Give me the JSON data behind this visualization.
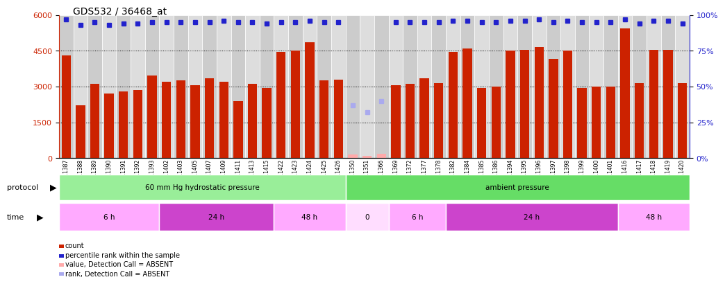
{
  "title": "GDS532 / 36468_at",
  "samples": [
    "GSM11387",
    "GSM11388",
    "GSM11389",
    "GSM11390",
    "GSM11391",
    "GSM11392",
    "GSM11393",
    "GSM11402",
    "GSM11403",
    "GSM11405",
    "GSM11407",
    "GSM11409",
    "GSM11411",
    "GSM11413",
    "GSM11415",
    "GSM11422",
    "GSM11423",
    "GSM11424",
    "GSM11425",
    "GSM11426",
    "GSM11350",
    "GSM11351",
    "GSM11366",
    "GSM11369",
    "GSM11372",
    "GSM11377",
    "GSM11378",
    "GSM11382",
    "GSM11384",
    "GSM11385",
    "GSM11386",
    "GSM11394",
    "GSM11395",
    "GSM11396",
    "GSM11397",
    "GSM11398",
    "GSM11399",
    "GSM11400",
    "GSM11401",
    "GSM11416",
    "GSM11417",
    "GSM11418",
    "GSM11419",
    "GSM11420"
  ],
  "counts": [
    4300,
    2200,
    3100,
    2700,
    2800,
    2850,
    3450,
    3200,
    3250,
    3050,
    3350,
    3200,
    2400,
    3100,
    2950,
    4450,
    4500,
    4850,
    3250,
    3300,
    null,
    null,
    null,
    3050,
    3100,
    3350,
    3150,
    4450,
    4600,
    2950,
    3000,
    4500,
    4550,
    4650,
    4150,
    4500,
    2950,
    3000,
    3000,
    5450,
    3150,
    4550,
    4550,
    3150
  ],
  "absent_value_bars": [
    null,
    null,
    null,
    null,
    null,
    null,
    null,
    null,
    null,
    null,
    null,
    null,
    null,
    null,
    null,
    null,
    null,
    null,
    null,
    null,
    150,
    100,
    180,
    null,
    null,
    null,
    null,
    null,
    null,
    null,
    null,
    null,
    null,
    null,
    null,
    null,
    null,
    null,
    null,
    null,
    null,
    null,
    null,
    null
  ],
  "percentile_ranks": [
    97,
    93,
    95,
    93,
    94,
    94,
    95,
    95,
    95,
    95,
    95,
    96,
    95,
    95,
    94,
    95,
    95,
    96,
    95,
    95,
    null,
    null,
    null,
    95,
    95,
    95,
    95,
    96,
    96,
    95,
    95,
    96,
    96,
    97,
    95,
    96,
    95,
    95,
    95,
    97,
    94,
    96,
    96,
    94
  ],
  "absent_rank_dots": [
    null,
    null,
    null,
    null,
    null,
    null,
    null,
    null,
    null,
    null,
    null,
    null,
    null,
    null,
    null,
    null,
    null,
    null,
    null,
    null,
    37,
    32,
    40,
    null,
    null,
    null,
    null,
    null,
    null,
    null,
    null,
    null,
    null,
    null,
    null,
    null,
    null,
    null,
    null,
    null,
    null,
    null,
    null,
    null
  ],
  "bar_color": "#cc2200",
  "dot_color": "#2222cc",
  "absent_val_color": "#ffaaaa",
  "absent_rank_color": "#aaaaee",
  "left_ylim": [
    0,
    6000
  ],
  "left_yticks": [
    0,
    1500,
    3000,
    4500,
    6000
  ],
  "right_ylim": [
    0,
    100
  ],
  "right_yticks": [
    0,
    25,
    50,
    75,
    100
  ],
  "dotted_line_values": [
    1500,
    3000,
    4500
  ],
  "protocol_groups": [
    {
      "label": "60 mm Hg hydrostatic pressure",
      "start": 0,
      "end": 20,
      "color": "#99ee99"
    },
    {
      "label": "ambient pressure",
      "start": 20,
      "end": 44,
      "color": "#66dd66"
    }
  ],
  "time_groups": [
    {
      "label": "6 h",
      "start": 0,
      "end": 7,
      "color": "#ffaaff"
    },
    {
      "label": "24 h",
      "start": 7,
      "end": 15,
      "color": "#cc44cc"
    },
    {
      "label": "48 h",
      "start": 15,
      "end": 20,
      "color": "#ffaaff"
    },
    {
      "label": "0",
      "start": 20,
      "end": 23,
      "color": "#ffddff"
    },
    {
      "label": "6 h",
      "start": 23,
      "end": 27,
      "color": "#ffaaff"
    },
    {
      "label": "24 h",
      "start": 27,
      "end": 39,
      "color": "#cc44cc"
    },
    {
      "label": "48 h",
      "start": 39,
      "end": 44,
      "color": "#ffaaff"
    }
  ],
  "legend_items": [
    {
      "label": "count",
      "color": "#cc2200"
    },
    {
      "label": "percentile rank within the sample",
      "color": "#2222cc"
    },
    {
      "label": "value, Detection Call = ABSENT",
      "color": "#ffaaaa"
    },
    {
      "label": "rank, Detection Call = ABSENT",
      "color": "#aaaaee"
    }
  ],
  "protocol_label": "protocol",
  "time_label": "time",
  "bg_color": "#ffffff"
}
